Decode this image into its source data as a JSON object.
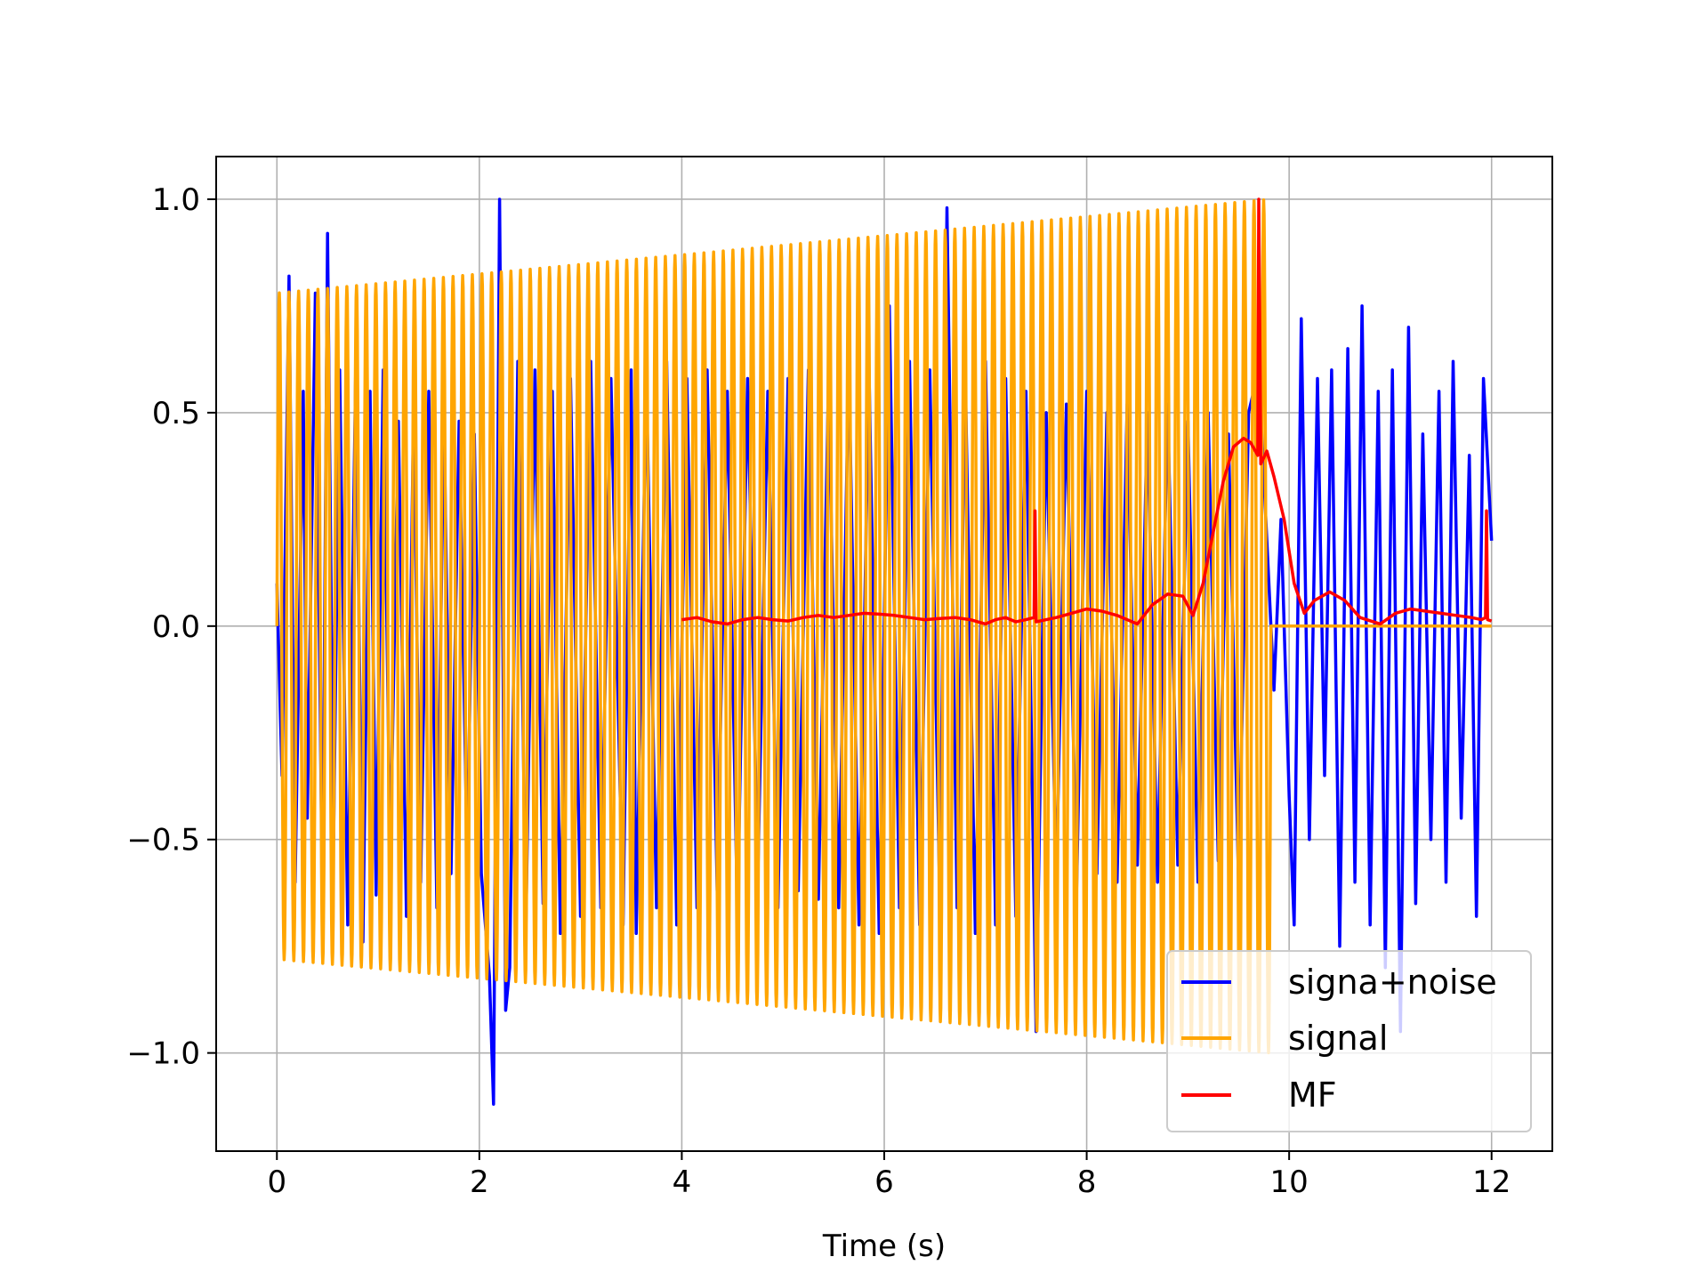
{
  "chart_data": {
    "type": "line",
    "title": "",
    "xlabel": "Time (s)",
    "ylabel": "",
    "xlim": [
      -0.6,
      12.6
    ],
    "ylim": [
      -1.23,
      1.1
    ],
    "xticks": [
      0,
      2,
      4,
      6,
      8,
      10,
      12
    ],
    "xtick_labels": [
      "0",
      "2",
      "4",
      "6",
      "8",
      "10",
      "12"
    ],
    "yticks": [
      -1.0,
      -0.5,
      0.0,
      0.5,
      1.0
    ],
    "ytick_labels": [
      "−1.0",
      "−0.5",
      "0.0",
      "0.5",
      "1.0"
    ],
    "grid": true,
    "legend_position": "lower-right",
    "series": [
      {
        "name": "signa+noise",
        "color": "#0000ff",
        "x": [
          0.0,
          0.05,
          0.12,
          0.18,
          0.26,
          0.3,
          0.38,
          0.45,
          0.5,
          0.56,
          0.62,
          0.7,
          0.78,
          0.85,
          0.92,
          0.98,
          1.05,
          1.12,
          1.2,
          1.28,
          1.35,
          1.42,
          1.5,
          1.58,
          1.65,
          1.72,
          1.8,
          1.88,
          1.95,
          2.02,
          2.1,
          2.14,
          2.2,
          2.26,
          2.3,
          2.38,
          2.46,
          2.55,
          2.63,
          2.72,
          2.8,
          2.9,
          3.0,
          3.1,
          3.2,
          3.3,
          3.42,
          3.5,
          3.55,
          3.65,
          3.75,
          3.85,
          3.95,
          4.05,
          4.15,
          4.25,
          4.35,
          4.45,
          4.55,
          4.65,
          4.75,
          4.85,
          4.95,
          5.05,
          5.15,
          5.25,
          5.35,
          5.45,
          5.55,
          5.65,
          5.75,
          5.85,
          5.95,
          6.05,
          6.15,
          6.25,
          6.35,
          6.45,
          6.55,
          6.62,
          6.72,
          6.8,
          6.9,
          7.0,
          7.1,
          7.2,
          7.3,
          7.4,
          7.5,
          7.6,
          7.7,
          7.8,
          7.9,
          8.0,
          8.1,
          8.2,
          8.3,
          8.4,
          8.5,
          8.6,
          8.7,
          8.8,
          8.9,
          9.0,
          9.1,
          9.2,
          9.3,
          9.4,
          9.5,
          9.6,
          9.7,
          9.78,
          9.85,
          9.92,
          10.0,
          10.05,
          10.12,
          10.2,
          10.28,
          10.35,
          10.42,
          10.5,
          10.58,
          10.65,
          10.72,
          10.8,
          10.88,
          10.95,
          11.02,
          11.1,
          11.18,
          11.25,
          11.32,
          11.4,
          11.48,
          11.55,
          11.62,
          11.7,
          11.78,
          11.85,
          11.92,
          12.0
        ],
        "y": [
          0.1,
          -0.35,
          0.82,
          -0.6,
          0.55,
          -0.45,
          0.78,
          -0.66,
          0.92,
          -0.5,
          0.6,
          -0.7,
          0.62,
          -0.74,
          0.55,
          -0.63,
          0.6,
          -0.55,
          0.48,
          -0.68,
          0.5,
          -0.6,
          0.55,
          -0.66,
          0.5,
          -0.58,
          0.48,
          -0.55,
          0.45,
          -0.58,
          -0.82,
          -1.12,
          1.0,
          -0.9,
          -0.8,
          0.62,
          -0.7,
          0.6,
          -0.65,
          0.55,
          -0.72,
          0.58,
          -0.68,
          0.62,
          -0.66,
          0.58,
          -0.7,
          0.6,
          -0.72,
          0.58,
          -0.66,
          0.62,
          -0.7,
          0.58,
          -0.66,
          0.6,
          -0.62,
          0.55,
          -0.68,
          0.58,
          -0.6,
          0.55,
          -0.66,
          0.58,
          -0.62,
          0.6,
          -0.64,
          0.58,
          -0.66,
          0.62,
          -0.7,
          0.6,
          -0.72,
          0.75,
          -0.66,
          0.62,
          -0.7,
          0.6,
          -0.66,
          0.98,
          -0.66,
          0.6,
          -0.72,
          0.62,
          -0.7,
          0.58,
          -0.68,
          0.55,
          -0.95,
          0.5,
          -0.6,
          0.52,
          -0.62,
          0.55,
          -0.58,
          0.5,
          -0.6,
          0.52,
          -0.56,
          0.5,
          -0.6,
          0.52,
          -0.56,
          0.48,
          -0.6,
          0.5,
          -0.55,
          0.45,
          -0.6,
          0.5,
          0.6,
          0.2,
          -0.15,
          0.25,
          -0.4,
          -0.7,
          0.72,
          -0.5,
          0.58,
          -0.35,
          0.6,
          -0.75,
          0.65,
          -0.6,
          0.75,
          -0.7,
          0.55,
          -0.8,
          0.6,
          -0.95,
          0.7,
          -0.65,
          0.45,
          -0.5,
          0.55,
          -0.6,
          0.62,
          -0.45,
          0.4,
          -0.68,
          0.58,
          0.2
        ]
      },
      {
        "name": "signal",
        "color": "#ffa500",
        "envelope_start_amplitude": 0.78,
        "envelope_end_amplitude": 1.0,
        "x_start": 0.0,
        "x_end": 9.82,
        "cycles": 103,
        "after_end_value": 0.0
      },
      {
        "name": "MF",
        "color": "#ff0000",
        "x": [
          4.0,
          4.15,
          4.3,
          4.45,
          4.6,
          4.75,
          4.9,
          5.05,
          5.2,
          5.35,
          5.5,
          5.65,
          5.8,
          5.95,
          6.1,
          6.25,
          6.4,
          6.55,
          6.7,
          6.85,
          7.0,
          7.1,
          7.2,
          7.3,
          7.4,
          7.48,
          7.49,
          7.5,
          7.6,
          7.7,
          7.85,
          8.0,
          8.15,
          8.3,
          8.5,
          8.65,
          8.8,
          8.95,
          9.05,
          9.15,
          9.25,
          9.35,
          9.45,
          9.55,
          9.62,
          9.69,
          9.7,
          9.72,
          9.78,
          9.85,
          9.95,
          10.05,
          10.15,
          10.25,
          10.4,
          10.55,
          10.7,
          10.9,
          11.05,
          11.2,
          11.35,
          11.5,
          11.65,
          11.8,
          11.9,
          11.94,
          11.95,
          11.96,
          12.0
        ],
        "y": [
          0.015,
          0.02,
          0.01,
          0.005,
          0.015,
          0.02,
          0.015,
          0.012,
          0.02,
          0.025,
          0.02,
          0.025,
          0.03,
          0.028,
          0.025,
          0.02,
          0.015,
          0.018,
          0.02,
          0.015,
          0.005,
          0.015,
          0.02,
          0.01,
          0.015,
          0.02,
          0.27,
          0.01,
          0.015,
          0.02,
          0.03,
          0.04,
          0.035,
          0.025,
          0.005,
          0.05,
          0.075,
          0.07,
          0.025,
          0.1,
          0.22,
          0.34,
          0.42,
          0.44,
          0.43,
          0.4,
          1.0,
          0.38,
          0.41,
          0.35,
          0.25,
          0.1,
          0.03,
          0.06,
          0.08,
          0.06,
          0.02,
          0.005,
          0.03,
          0.04,
          0.035,
          0.03,
          0.025,
          0.02,
          0.015,
          0.02,
          0.27,
          0.015,
          0.012
        ]
      }
    ]
  }
}
